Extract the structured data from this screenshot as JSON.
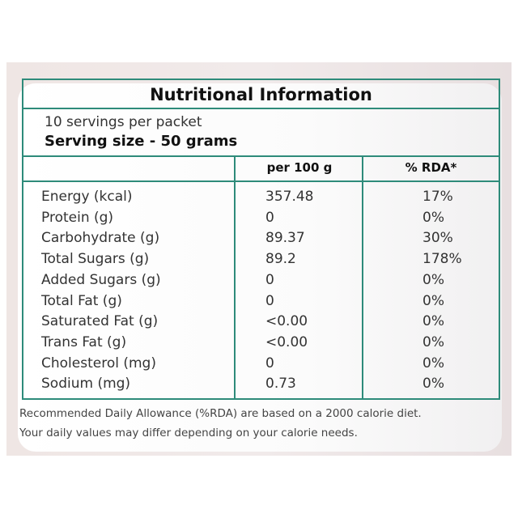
{
  "title": "Nutritional Information",
  "servings_per_packet": "10 servings per packet",
  "serving_size": "Serving size - 50 grams",
  "columns": [
    "",
    "per 100 g",
    "% RDA*"
  ],
  "rows": [
    {
      "name": "Energy (kcal)",
      "per100g": "357.48",
      "rda": "17%"
    },
    {
      "name": "Protein (g)",
      "per100g": "0",
      "rda": "0%"
    },
    {
      "name": "Carbohydrate (g)",
      "per100g": "89.37",
      "rda": "30%"
    },
    {
      "name": "Total Sugars (g)",
      "per100g": "89.2",
      "rda": "178%"
    },
    {
      "name": "Added Sugars (g)",
      "per100g": "0",
      "rda": "0%"
    },
    {
      "name": "Total Fat (g)",
      "per100g": "0",
      "rda": "0%"
    },
    {
      "name": "Saturated Fat (g)",
      "per100g": "<0.00",
      "rda": "0%"
    },
    {
      "name": "Trans Fat (g)",
      "per100g": "<0.00",
      "rda": "0%"
    },
    {
      "name": "Cholesterol (mg)",
      "per100g": "0",
      "rda": "0%"
    },
    {
      "name": "Sodium (mg)",
      "per100g": "0.73",
      "rda": "0%"
    }
  ],
  "footnote": [
    "Recommended Daily Allowance (%RDA) are based on a 2000 calorie diet.",
    "Your daily values may differ depending on your calorie needs."
  ],
  "colors": {
    "border": "#2e8b7a"
  }
}
